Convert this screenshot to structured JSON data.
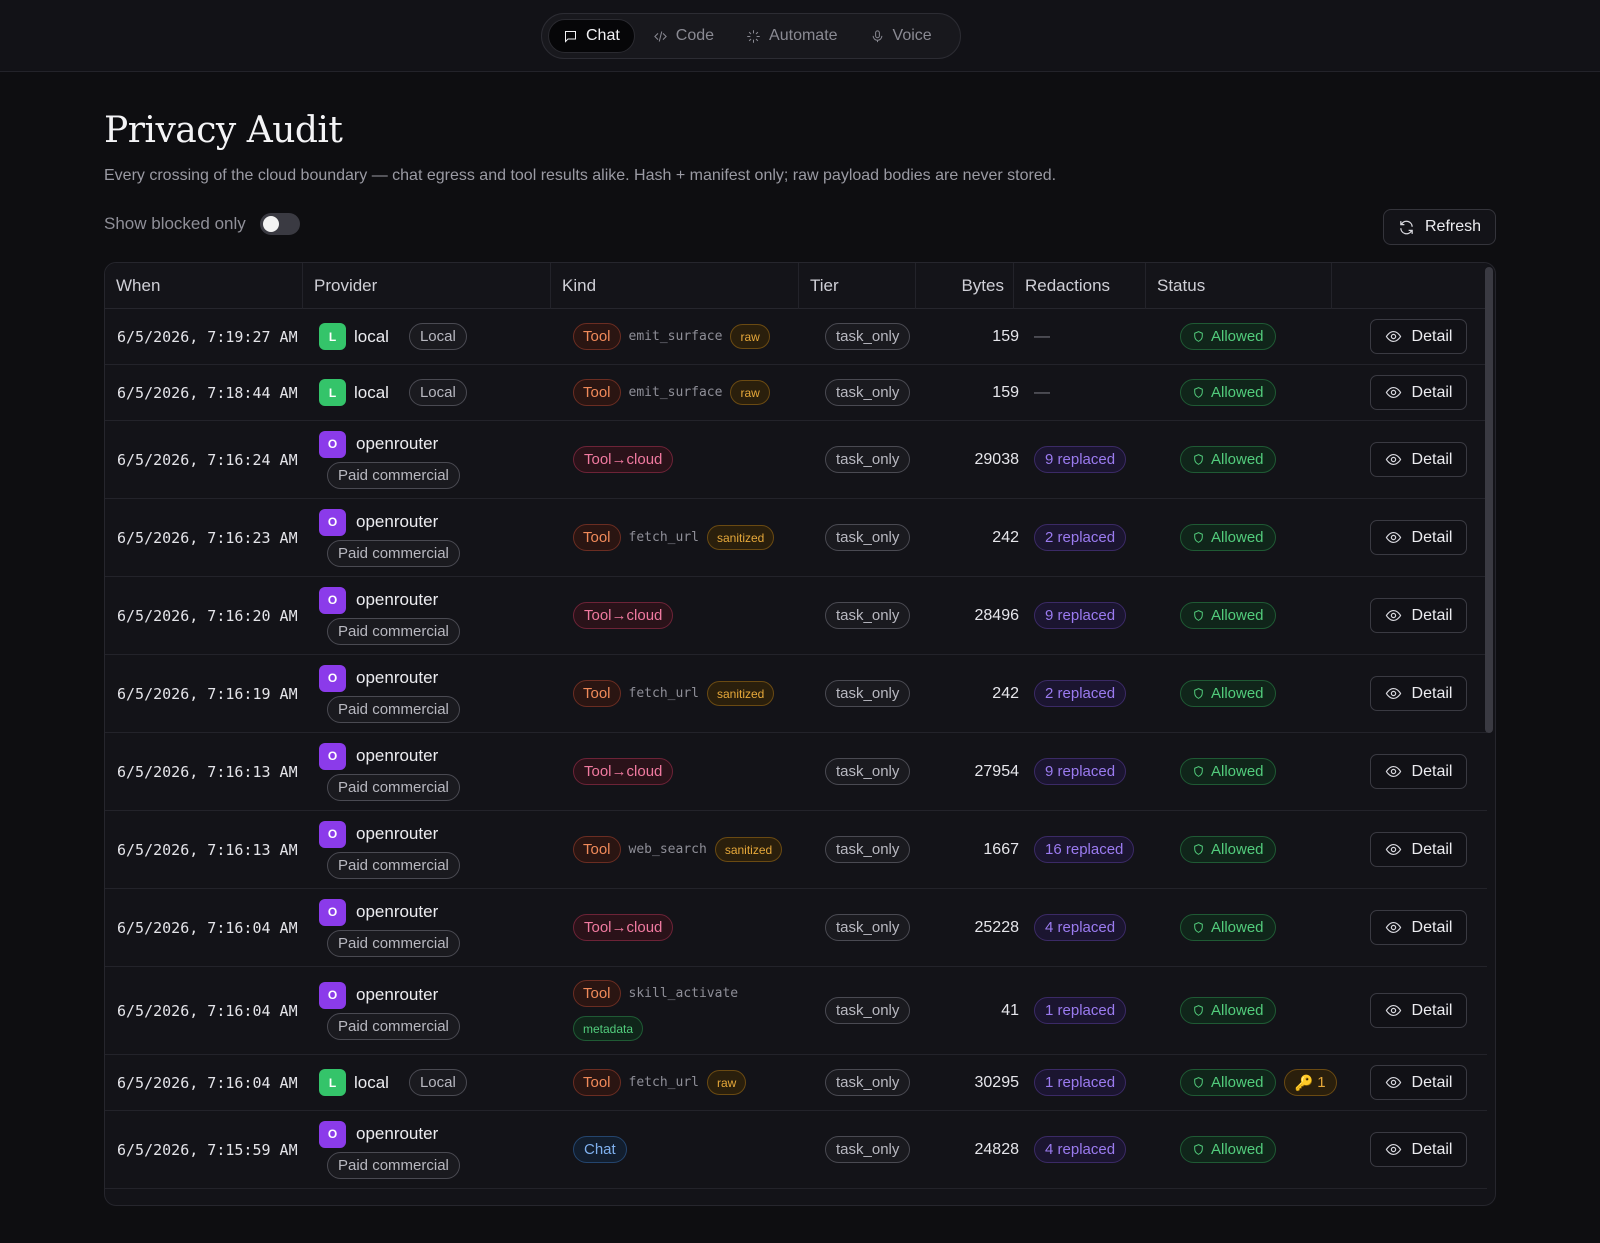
{
  "modes": [
    {
      "label": "Chat",
      "icon": "chat-icon",
      "active": true
    },
    {
      "label": "Code",
      "icon": "code-icon",
      "active": false
    },
    {
      "label": "Automate",
      "icon": "sparkle-icon",
      "active": false
    },
    {
      "label": "Voice",
      "icon": "mic-icon",
      "active": false
    }
  ],
  "page": {
    "title": "Privacy Audit",
    "subtitle": "Every crossing of the cloud boundary — chat egress and tool results alike. Hash + manifest only; raw payload bodies are never stored."
  },
  "filter": {
    "label": "Show blocked only",
    "on": false
  },
  "refresh_label": "Refresh",
  "columns": [
    "When",
    "Provider",
    "Kind",
    "Tier",
    "Bytes",
    "Redactions",
    "Status",
    ""
  ],
  "detail_label": "Detail",
  "rows": [
    {
      "when": "6/5/2026, 7:19:27 AM",
      "provider": "local",
      "provider_initial": "L",
      "provider_type": "Local",
      "kind": "Tool",
      "tool": "emit_surface",
      "tag": "raw",
      "tier": "task_only",
      "bytes": "159",
      "redactions": "—",
      "status": "Allowed"
    },
    {
      "when": "6/5/2026, 7:18:44 AM",
      "provider": "local",
      "provider_initial": "L",
      "provider_type": "Local",
      "kind": "Tool",
      "tool": "emit_surface",
      "tag": "raw",
      "tier": "task_only",
      "bytes": "159",
      "redactions": "—",
      "status": "Allowed"
    },
    {
      "when": "6/5/2026, 7:16:24 AM",
      "provider": "openrouter",
      "provider_initial": "O",
      "provider_type": "Paid commercial",
      "kind": "Tool→cloud",
      "tool": "",
      "tag": "",
      "tier": "task_only",
      "bytes": "29038",
      "redactions": "9 replaced",
      "status": "Allowed"
    },
    {
      "when": "6/5/2026, 7:16:23 AM",
      "provider": "openrouter",
      "provider_initial": "O",
      "provider_type": "Paid commercial",
      "kind": "Tool",
      "tool": "fetch_url",
      "tag": "sanitized",
      "tier": "task_only",
      "bytes": "242",
      "redactions": "2 replaced",
      "status": "Allowed"
    },
    {
      "when": "6/5/2026, 7:16:20 AM",
      "provider": "openrouter",
      "provider_initial": "O",
      "provider_type": "Paid commercial",
      "kind": "Tool→cloud",
      "tool": "",
      "tag": "",
      "tier": "task_only",
      "bytes": "28496",
      "redactions": "9 replaced",
      "status": "Allowed"
    },
    {
      "when": "6/5/2026, 7:16:19 AM",
      "provider": "openrouter",
      "provider_initial": "O",
      "provider_type": "Paid commercial",
      "kind": "Tool",
      "tool": "fetch_url",
      "tag": "sanitized",
      "tier": "task_only",
      "bytes": "242",
      "redactions": "2 replaced",
      "status": "Allowed"
    },
    {
      "when": "6/5/2026, 7:16:13 AM",
      "provider": "openrouter",
      "provider_initial": "O",
      "provider_type": "Paid commercial",
      "kind": "Tool→cloud",
      "tool": "",
      "tag": "",
      "tier": "task_only",
      "bytes": "27954",
      "redactions": "9 replaced",
      "status": "Allowed"
    },
    {
      "when": "6/5/2026, 7:16:13 AM",
      "provider": "openrouter",
      "provider_initial": "O",
      "provider_type": "Paid commercial",
      "kind": "Tool",
      "tool": "web_search",
      "tag": "sanitized",
      "tier": "task_only",
      "bytes": "1667",
      "redactions": "16 replaced",
      "status": "Allowed"
    },
    {
      "when": "6/5/2026, 7:16:04 AM",
      "provider": "openrouter",
      "provider_initial": "O",
      "provider_type": "Paid commercial",
      "kind": "Tool→cloud",
      "tool": "",
      "tag": "",
      "tier": "task_only",
      "bytes": "25228",
      "redactions": "4 replaced",
      "status": "Allowed"
    },
    {
      "when": "6/5/2026, 7:16:04 AM",
      "provider": "openrouter",
      "provider_initial": "O",
      "provider_type": "Paid commercial",
      "kind": "Tool",
      "tool": "skill_activate",
      "tag": "metadata",
      "tier": "task_only",
      "bytes": "41",
      "redactions": "1 replaced",
      "status": "Allowed"
    },
    {
      "when": "6/5/2026, 7:16:04 AM",
      "provider": "local",
      "provider_initial": "L",
      "provider_type": "Local",
      "kind": "Tool",
      "tool": "fetch_url",
      "tag": "raw",
      "tier": "task_only",
      "bytes": "30295",
      "redactions": "1 replaced",
      "status": "Allowed",
      "key_badge": "1"
    },
    {
      "when": "6/5/2026, 7:15:59 AM",
      "provider": "openrouter",
      "provider_initial": "O",
      "provider_type": "Paid commercial",
      "kind": "Chat",
      "tool": "",
      "tag": "",
      "tier": "task_only",
      "bytes": "24828",
      "redactions": "4 replaced",
      "status": "Allowed"
    }
  ]
}
